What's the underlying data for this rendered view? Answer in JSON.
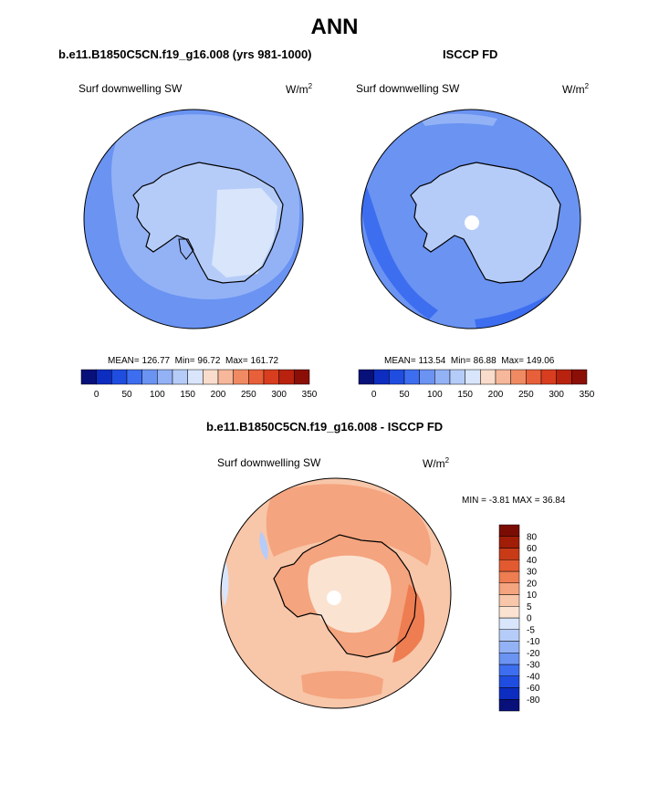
{
  "colors": {
    "abs_levels": [
      "#08107a",
      "#0c2dc0",
      "#1f4de0",
      "#3d6ef0",
      "#6a93f2",
      "#93b2f6",
      "#b6ccf8",
      "#d8e5fb",
      "#f9dccb",
      "#f6b79a",
      "#f08a62",
      "#e8603a",
      "#d83d1f",
      "#b8220e",
      "#8b0f06"
    ],
    "diff_levels": [
      "#08107a",
      "#0c2dc0",
      "#1f4de0",
      "#3d6ef0",
      "#6a93f2",
      "#93b2f6",
      "#b6ccf8",
      "#d8e5fb",
      "#fbe3d2",
      "#f8c6a9",
      "#f4a47e",
      "#ee7d52",
      "#e35a30",
      "#c93a17",
      "#a11d07",
      "#7a0c04"
    ],
    "land_outline": "#000000"
  },
  "figure": {
    "title": "ANN"
  },
  "chart_data": [
    {
      "type": "heatmap",
      "projection": "south-polar-stereographic",
      "title": "b.e11.B1850C5CN.f19_g16.008 (yrs 981-1000)",
      "variable": "Surf downwelling SW",
      "units": "W/m",
      "units_exp": "2",
      "stats": {
        "mean_label": "MEAN=",
        "mean": "126.77",
        "min_label": "Min=",
        "min": "96.72",
        "max_label": "Max=",
        "max": "161.72"
      },
      "colorbar": {
        "orientation": "horizontal",
        "levels": [
          0,
          25,
          50,
          75,
          100,
          125,
          150,
          175,
          200,
          225,
          250,
          275,
          300,
          325,
          350
        ],
        "tick_labels": [
          "0",
          "50",
          "100",
          "150",
          "200",
          "250",
          "300",
          "350"
        ]
      },
      "regions": {
        "ocean_band": 100,
        "inner_ring": 125,
        "ice_sheet": 150,
        "far_ocean": 100
      }
    },
    {
      "type": "heatmap",
      "projection": "south-polar-stereographic",
      "title": "ISCCP FD",
      "variable": "Surf downwelling SW",
      "units": "W/m",
      "units_exp": "2",
      "stats": {
        "mean_label": "MEAN=",
        "mean": "113.54",
        "min_label": "Min=",
        "min": "86.88",
        "max_label": "Max=",
        "max": "149.06"
      },
      "colorbar": {
        "orientation": "horizontal",
        "levels": [
          0,
          25,
          50,
          75,
          100,
          125,
          150,
          175,
          200,
          225,
          250,
          275,
          300,
          325,
          350
        ],
        "tick_labels": [
          "0",
          "50",
          "100",
          "150",
          "200",
          "250",
          "300",
          "350"
        ]
      },
      "regions": {
        "ocean_band": 100,
        "low_band": 75,
        "ice_sheet": 125,
        "missing_pole": "no data"
      }
    },
    {
      "type": "heatmap",
      "projection": "south-polar-stereographic",
      "title": "b.e11.B1850C5CN.f19_g16.008 - ISCCP FD",
      "variable": "Surf downwelling SW",
      "units": "W/m",
      "units_exp": "2",
      "stats": {
        "min_label": "MIN =",
        "min": "-3.81",
        "max_label": "MAX =",
        "max": "36.84"
      },
      "colorbar": {
        "orientation": "vertical",
        "levels": [
          -80,
          -60,
          -40,
          -30,
          -20,
          -10,
          -5,
          0,
          5,
          10,
          20,
          30,
          40,
          60,
          80
        ],
        "tick_labels": [
          "80",
          "60",
          "40",
          "30",
          "20",
          "10",
          "5",
          "0",
          "-5",
          "-10",
          "-20",
          "-30",
          "-40",
          "-60",
          "-80"
        ]
      },
      "regions": {
        "background": 10,
        "ring": 20,
        "east_coast": 30,
        "interior": 5,
        "local_negative": -5
      }
    }
  ]
}
